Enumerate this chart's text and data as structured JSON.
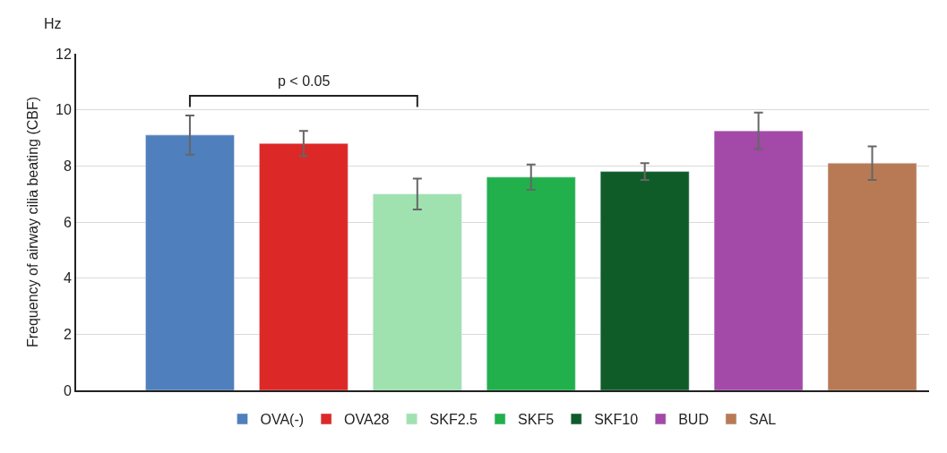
{
  "chart_data": {
    "type": "bar",
    "ylabel": "Frequency of airway cilia beating (CBF)",
    "categories": [
      null,
      null,
      null,
      null,
      null,
      null,
      null
    ],
    "series": [
      {
        "name": "OVA(-)",
        "color": "#4f7fbc",
        "values": [
          9.1,
          null,
          null,
          null,
          null,
          null,
          null
        ],
        "errors": [
          0.7,
          null,
          null,
          null,
          null,
          null,
          null
        ]
      },
      {
        "name": "OVA28",
        "color": "#dd2828",
        "values": [
          null,
          8.8,
          null,
          null,
          null,
          null,
          null
        ],
        "errors": [
          null,
          0.45,
          null,
          null,
          null,
          null,
          null
        ]
      },
      {
        "name": "SKF2.5",
        "color": "#9fe2b0",
        "values": [
          null,
          null,
          7.0,
          null,
          null,
          null,
          null
        ],
        "errors": [
          null,
          null,
          0.55,
          null,
          null,
          null,
          null
        ]
      },
      {
        "name": "SKF5",
        "color": "#22b04c",
        "values": [
          null,
          null,
          null,
          7.6,
          null,
          null,
          null
        ],
        "errors": [
          null,
          null,
          null,
          0.45,
          null,
          null,
          null
        ]
      },
      {
        "name": "SKF10",
        "color": "#0f5c29",
        "values": [
          null,
          null,
          null,
          null,
          7.8,
          null,
          null
        ],
        "errors": [
          null,
          null,
          null,
          null,
          0.3,
          null,
          null
        ]
      },
      {
        "name": "BUD",
        "color": "#a349a8",
        "values": [
          null,
          null,
          null,
          null,
          null,
          9.25,
          null
        ],
        "errors": [
          null,
          null,
          null,
          null,
          null,
          0.65,
          null
        ]
      },
      {
        "name": "SAL",
        "color": "#b87a55",
        "values": [
          null,
          null,
          null,
          null,
          null,
          null,
          8.1
        ],
        "errors": [
          null,
          null,
          null,
          null,
          null,
          null,
          0.6
        ]
      }
    ],
    "ylim": [
      0,
      12
    ],
    "yticks": [
      0,
      2,
      4,
      6,
      8,
      10,
      12
    ],
    "grid": "y",
    "legend": "bottom",
    "annotations": [
      "Hz",
      "p < 0.05"
    ]
  }
}
